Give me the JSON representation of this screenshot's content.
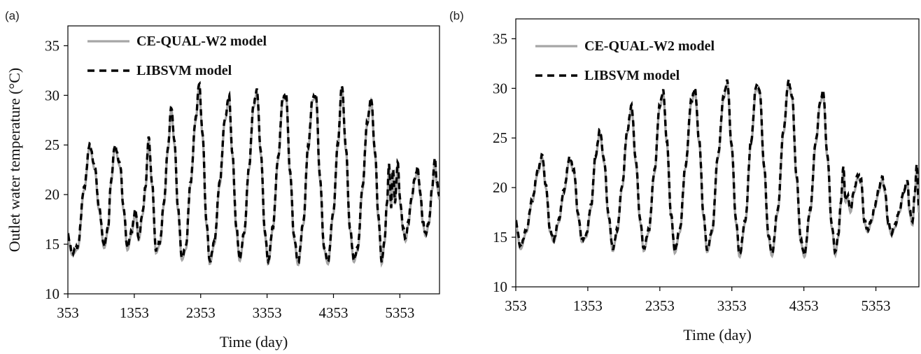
{
  "chart_data": [
    {
      "panel": "(a)",
      "type": "line",
      "xlabel": "Time (day)",
      "ylabel": "Outlet water temperature (°C)",
      "xlim": [
        353,
        5950
      ],
      "ylim": [
        10,
        37
      ],
      "xticks": [
        353,
        1353,
        2353,
        3353,
        4353,
        5353
      ],
      "yticks": [
        10,
        15,
        20,
        25,
        30,
        35
      ],
      "grid": false,
      "legend_position": "top-left",
      "series": [
        {
          "name": "CE-QUAL-W2 model",
          "color": "#a6a6a6",
          "style": "solid"
        },
        {
          "name": "LIBSVM model",
          "color": "#000000",
          "style": "dashed"
        }
      ],
      "keypoints": [
        [
          353,
          15.5
        ],
        [
          420,
          13.9
        ],
        [
          500,
          14.5
        ],
        [
          600,
          20.5
        ],
        [
          680,
          24.8
        ],
        [
          760,
          22.5
        ],
        [
          820,
          18.5
        ],
        [
          900,
          14.6
        ],
        [
          960,
          16.5
        ],
        [
          1000,
          21.0
        ],
        [
          1060,
          24.7
        ],
        [
          1140,
          22.8
        ],
        [
          1190,
          18.5
        ],
        [
          1250,
          14.4
        ],
        [
          1310,
          16.0
        ],
        [
          1370,
          18.2
        ],
        [
          1420,
          15.4
        ],
        [
          1480,
          18.0
        ],
        [
          1520,
          20.5
        ],
        [
          1570,
          25.5
        ],
        [
          1620,
          21.0
        ],
        [
          1680,
          14.1
        ],
        [
          1740,
          15.0
        ],
        [
          1800,
          19.0
        ],
        [
          1860,
          24.5
        ],
        [
          1910,
          28.6
        ],
        [
          1960,
          25.0
        ],
        [
          2010,
          18.5
        ],
        [
          2070,
          13.4
        ],
        [
          2130,
          14.5
        ],
        [
          2200,
          21.0
        ],
        [
          2280,
          27.5
        ],
        [
          2330,
          31.0
        ],
        [
          2380,
          26.0
        ],
        [
          2440,
          17.0
        ],
        [
          2490,
          13.0
        ],
        [
          2560,
          15.0
        ],
        [
          2640,
          21.0
        ],
        [
          2720,
          27.5
        ],
        [
          2780,
          29.7
        ],
        [
          2830,
          24.0
        ],
        [
          2890,
          16.5
        ],
        [
          2940,
          13.3
        ],
        [
          3010,
          16.0
        ],
        [
          3080,
          22.5
        ],
        [
          3150,
          28.8
        ],
        [
          3200,
          30.3
        ],
        [
          3260,
          24.0
        ],
        [
          3320,
          16.0
        ],
        [
          3370,
          13.0
        ],
        [
          3440,
          16.5
        ],
        [
          3520,
          23.5
        ],
        [
          3590,
          29.5
        ],
        [
          3640,
          29.8
        ],
        [
          3700,
          22.0
        ],
        [
          3760,
          15.5
        ],
        [
          3820,
          12.9
        ],
        [
          3900,
          17.0
        ],
        [
          3970,
          24.5
        ],
        [
          4040,
          29.5
        ],
        [
          4090,
          29.8
        ],
        [
          4150,
          21.5
        ],
        [
          4210,
          14.5
        ],
        [
          4270,
          13.0
        ],
        [
          4350,
          18.0
        ],
        [
          4420,
          25.0
        ],
        [
          4480,
          30.8
        ],
        [
          4540,
          24.5
        ],
        [
          4600,
          16.5
        ],
        [
          4660,
          13.2
        ],
        [
          4720,
          14.5
        ],
        [
          4790,
          20.5
        ],
        [
          4860,
          27.0
        ],
        [
          4920,
          29.5
        ],
        [
          4980,
          24.0
        ],
        [
          5030,
          17.5
        ],
        [
          5080,
          13.0
        ],
        [
          5120,
          15.0
        ],
        [
          5160,
          19.0
        ],
        [
          5190,
          23.0
        ],
        [
          5220,
          18.5
        ],
        [
          5250,
          22.5
        ],
        [
          5280,
          19.0
        ],
        [
          5320,
          23.0
        ],
        [
          5360,
          19.0
        ],
        [
          5400,
          16.5
        ],
        [
          5440,
          15.3
        ],
        [
          5480,
          17.0
        ],
        [
          5530,
          19.5
        ],
        [
          5580,
          21.5
        ],
        [
          5620,
          22.5
        ],
        [
          5660,
          20.0
        ],
        [
          5700,
          17.0
        ],
        [
          5740,
          15.8
        ],
        [
          5790,
          17.0
        ],
        [
          5840,
          20.5
        ],
        [
          5880,
          23.5
        ],
        [
          5910,
          21.0
        ],
        [
          5950,
          19.5
        ]
      ]
    },
    {
      "panel": "(b)",
      "type": "line",
      "xlabel": "Time (day)",
      "ylabel": "",
      "xlim": [
        353,
        5950
      ],
      "ylim": [
        10,
        37
      ],
      "xticks": [
        353,
        1353,
        2353,
        3353,
        4353,
        5353
      ],
      "yticks": [
        10,
        15,
        20,
        25,
        30,
        35
      ],
      "grid": false,
      "legend_position": "top-left",
      "series": [
        {
          "name": "CE-QUAL-W2 model",
          "color": "#a6a6a6",
          "style": "solid"
        },
        {
          "name": "LIBSVM model",
          "color": "#000000",
          "style": "dashed"
        }
      ],
      "keypoints": [
        [
          353,
          16.2
        ],
        [
          420,
          13.8
        ],
        [
          500,
          15.5
        ],
        [
          580,
          18.5
        ],
        [
          660,
          21.5
        ],
        [
          720,
          23.0
        ],
        [
          770,
          20.0
        ],
        [
          830,
          15.5
        ],
        [
          880,
          14.5
        ],
        [
          950,
          16.5
        ],
        [
          1020,
          19.5
        ],
        [
          1100,
          22.8
        ],
        [
          1160,
          21.5
        ],
        [
          1220,
          17.0
        ],
        [
          1270,
          14.5
        ],
        [
          1330,
          15.0
        ],
        [
          1400,
          18.0
        ],
        [
          1460,
          23.0
        ],
        [
          1520,
          25.5
        ],
        [
          1580,
          22.5
        ],
        [
          1640,
          17.0
        ],
        [
          1700,
          13.6
        ],
        [
          1760,
          15.5
        ],
        [
          1830,
          20.0
        ],
        [
          1900,
          25.5
        ],
        [
          1960,
          28.0
        ],
        [
          2020,
          22.5
        ],
        [
          2080,
          16.5
        ],
        [
          2130,
          13.6
        ],
        [
          2200,
          15.5
        ],
        [
          2280,
          21.5
        ],
        [
          2350,
          28.0
        ],
        [
          2400,
          29.5
        ],
        [
          2450,
          24.5
        ],
        [
          2510,
          17.0
        ],
        [
          2560,
          13.4
        ],
        [
          2630,
          15.5
        ],
        [
          2710,
          22.0
        ],
        [
          2790,
          28.5
        ],
        [
          2840,
          29.7
        ],
        [
          2900,
          24.5
        ],
        [
          2960,
          17.0
        ],
        [
          3010,
          13.5
        ],
        [
          3080,
          15.5
        ],
        [
          3160,
          23.0
        ],
        [
          3240,
          29.0
        ],
        [
          3290,
          30.5
        ],
        [
          3350,
          24.0
        ],
        [
          3410,
          16.5
        ],
        [
          3460,
          13.0
        ],
        [
          3540,
          16.5
        ],
        [
          3620,
          24.5
        ],
        [
          3690,
          30.0
        ],
        [
          3740,
          29.5
        ],
        [
          3800,
          22.0
        ],
        [
          3860,
          15.0
        ],
        [
          3910,
          13.1
        ],
        [
          3990,
          17.5
        ],
        [
          4070,
          25.5
        ],
        [
          4140,
          30.5
        ],
        [
          4190,
          29.0
        ],
        [
          4250,
          21.0
        ],
        [
          4310,
          14.5
        ],
        [
          4360,
          13.0
        ],
        [
          4440,
          17.5
        ],
        [
          4520,
          24.5
        ],
        [
          4580,
          28.5
        ],
        [
          4620,
          29.5
        ],
        [
          4680,
          23.0
        ],
        [
          4740,
          16.0
        ],
        [
          4790,
          13.2
        ],
        [
          4830,
          15.0
        ],
        [
          4870,
          18.5
        ],
        [
          4900,
          22.0
        ],
        [
          4930,
          18.5
        ],
        [
          4960,
          19.0
        ],
        [
          5000,
          17.5
        ],
        [
          5050,
          19.5
        ],
        [
          5100,
          21.0
        ],
        [
          5150,
          20.5
        ],
        [
          5190,
          16.5
        ],
        [
          5240,
          15.5
        ],
        [
          5290,
          16.5
        ],
        [
          5340,
          18.0
        ],
        [
          5390,
          19.5
        ],
        [
          5440,
          20.8
        ],
        [
          5480,
          19.5
        ],
        [
          5520,
          16.5
        ],
        [
          5570,
          15.2
        ],
        [
          5620,
          16.0
        ],
        [
          5680,
          17.5
        ],
        [
          5740,
          19.5
        ],
        [
          5790,
          20.5
        ],
        [
          5820,
          17.5
        ],
        [
          5860,
          16.2
        ],
        [
          5890,
          19.0
        ],
        [
          5920,
          22.0
        ],
        [
          5950,
          17.5
        ]
      ]
    }
  ]
}
